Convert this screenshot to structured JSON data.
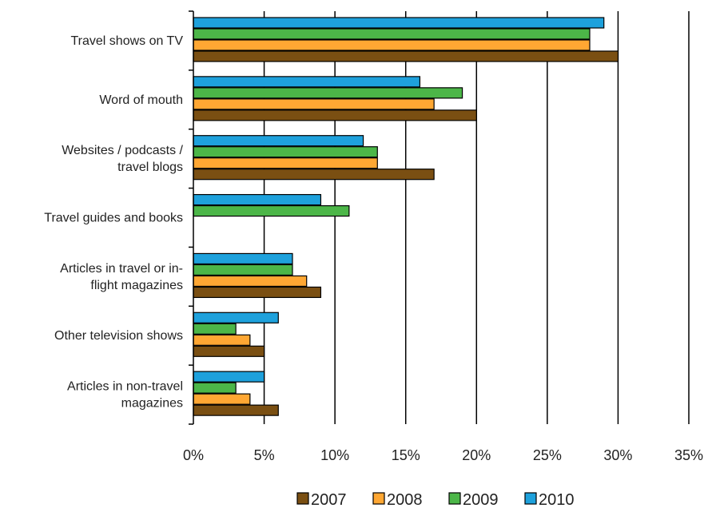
{
  "chart_data": {
    "type": "bar",
    "orientation": "horizontal",
    "categories": [
      [
        "Travel shows on TV"
      ],
      [
        "Word of mouth"
      ],
      [
        "Websites / podcasts /",
        "travel blogs"
      ],
      [
        "Travel guides and books"
      ],
      [
        "Articles in travel or in-",
        "flight magazines"
      ],
      [
        "Other television shows"
      ],
      [
        "Articles in non-travel",
        "magazines"
      ]
    ],
    "series": [
      {
        "name": "2007",
        "color": "#7a4f12",
        "values": [
          30,
          20,
          17,
          null,
          9,
          5,
          6
        ]
      },
      {
        "name": "2008",
        "color": "#ffa733",
        "values": [
          28,
          17,
          13,
          null,
          8,
          4,
          4
        ]
      },
      {
        "name": "2009",
        "color": "#4cb648",
        "values": [
          28,
          19,
          13,
          11,
          7,
          3,
          3
        ]
      },
      {
        "name": "2010",
        "color": "#1ea1dc",
        "values": [
          29,
          16,
          12,
          9,
          7,
          6,
          5
        ]
      }
    ],
    "xlim": [
      0,
      35
    ],
    "x_ticks": [
      "0%",
      "5%",
      "10%",
      "15%",
      "20%",
      "25%",
      "30%",
      "35%"
    ],
    "grid": true,
    "legend_position": "bottom"
  }
}
